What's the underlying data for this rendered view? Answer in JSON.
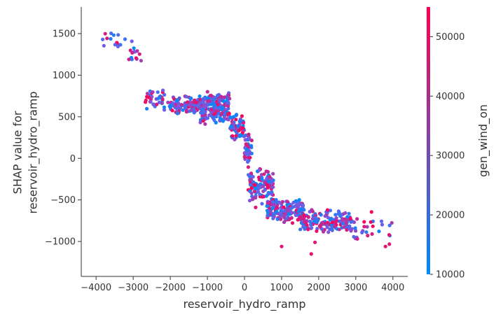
{
  "chart_data": {
    "type": "scatter",
    "title": "",
    "xlabel": "reservoir_hydro_ramp",
    "ylabel_lines": [
      "SHAP value for",
      "reservoir_hydro_ramp"
    ],
    "xlim": [
      -4400,
      4400
    ],
    "ylim": [
      -1420,
      1820
    ],
    "xticks": [
      -4000,
      -3000,
      -2000,
      -1000,
      0,
      1000,
      2000,
      3000,
      4000
    ],
    "xtick_labels": [
      "−4000",
      "−3000",
      "−2000",
      "−1000",
      "0",
      "1000",
      "2000",
      "3000",
      "4000"
    ],
    "yticks": [
      1500,
      1000,
      500,
      0,
      -500,
      -1000
    ],
    "ytick_labels": [
      "1500",
      "1000",
      "500",
      "0",
      "−500",
      "−1000"
    ],
    "grid": false,
    "colorbar": {
      "label": "gen_wind_on",
      "min": 10000,
      "max": 55000,
      "ticks": [
        10000,
        20000,
        30000,
        40000,
        50000
      ],
      "tick_labels": [
        "10000",
        "20000",
        "30000",
        "40000",
        "50000"
      ],
      "colors": [
        "#008afb",
        "#ff0052"
      ]
    },
    "point_generation": {
      "description_of_distribution": "dense clusters read from figure",
      "clusters": [
        {
          "x": [
            -3900,
            -3200
          ],
          "y": [
            1250,
            1550
          ],
          "n": 14
        },
        {
          "x": [
            -3150,
            -2750
          ],
          "y": [
            1050,
            1450
          ],
          "n": 14
        },
        {
          "x": [
            -2700,
            -2000
          ],
          "y": [
            560,
            850
          ],
          "n": 40
        },
        {
          "x": [
            -2000,
            -1200
          ],
          "y": [
            520,
            760
          ],
          "n": 110
        },
        {
          "x": [
            -1200,
            -400
          ],
          "y": [
            400,
            820
          ],
          "n": 200
        },
        {
          "x": [
            -400,
            0
          ],
          "y": [
            200,
            560
          ],
          "n": 60
        },
        {
          "x": [
            0,
            200
          ],
          "y": [
            -120,
            320
          ],
          "n": 40
        },
        {
          "x": [
            100,
            800
          ],
          "y": [
            -560,
            -100
          ],
          "n": 120
        },
        {
          "x": [
            600,
            1600
          ],
          "y": [
            -800,
            -480
          ],
          "n": 160
        },
        {
          "x": [
            1500,
            2900
          ],
          "y": [
            -920,
            -600
          ],
          "n": 150
        },
        {
          "x": [
            2800,
            4000
          ],
          "y": [
            -1060,
            -600
          ],
          "n": 30
        }
      ],
      "outliers": [
        {
          "x": 1000,
          "y": -1060
        },
        {
          "x": 1800,
          "y": -1150
        },
        {
          "x": 1900,
          "y": -1010
        },
        {
          "x": 3800,
          "y": -1060
        },
        {
          "x": 3900,
          "y": -920
        },
        {
          "x": 300,
          "y": -590
        }
      ]
    }
  }
}
